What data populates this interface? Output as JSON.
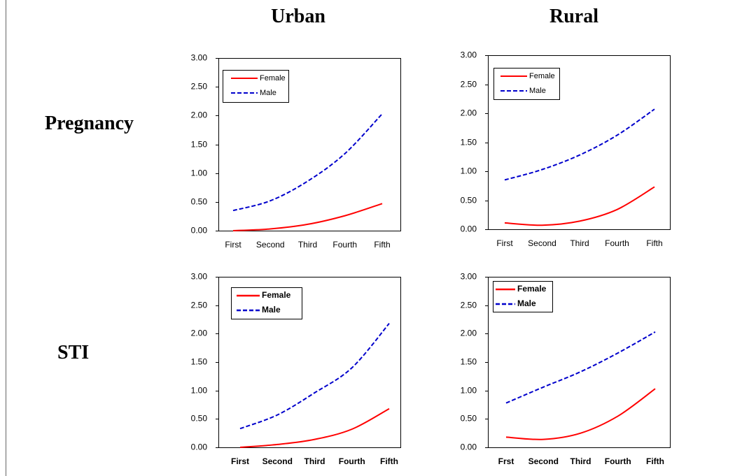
{
  "column_headers": [
    "Urban",
    "Rural"
  ],
  "row_headers": [
    "Pregnancy",
    "STI"
  ],
  "chart_data": [
    {
      "type": "line",
      "categories": [
        "First",
        "Second",
        "Third",
        "Fourth",
        "Fifth"
      ],
      "series": [
        {
          "name": "Female",
          "color": "#ff0000",
          "values": [
            0.0,
            0.03,
            0.11,
            0.26,
            0.47
          ]
        },
        {
          "name": "Male",
          "color": "#0000cc",
          "values": [
            0.35,
            0.52,
            0.86,
            1.34,
            2.03
          ]
        }
      ],
      "ylim": [
        0,
        3
      ],
      "yticks": [
        0,
        0.5,
        1,
        1.5,
        2,
        2.5,
        3
      ],
      "ytick_labels": [
        "0.00",
        "0.50",
        "1.00",
        "1.50",
        "2.00",
        "2.50",
        "3.00"
      ],
      "grid": false,
      "legend": "top-left"
    },
    {
      "type": "line",
      "categories": [
        "First",
        "Second",
        "Third",
        "Fourth",
        "Fifth"
      ],
      "series": [
        {
          "name": "Female",
          "color": "#ff0000",
          "values": [
            0.11,
            0.07,
            0.14,
            0.34,
            0.73
          ]
        },
        {
          "name": "Male",
          "color": "#0000cc",
          "values": [
            0.85,
            1.03,
            1.28,
            1.62,
            2.07
          ]
        }
      ],
      "ylim": [
        0,
        3
      ],
      "yticks": [
        0,
        0.5,
        1,
        1.5,
        2,
        2.5,
        3
      ],
      "ytick_labels": [
        "0.00",
        "0.50",
        "1.00",
        "1.50",
        "2.00",
        "2.50",
        "3.00"
      ],
      "grid": false,
      "legend": "top-left"
    },
    {
      "type": "line",
      "categories": [
        "First",
        "Second",
        "Third",
        "Fourth",
        "Fifth"
      ],
      "series": [
        {
          "name": "Female",
          "color": "#ff0000",
          "values": [
            0.0,
            0.05,
            0.14,
            0.32,
            0.68
          ]
        },
        {
          "name": "Male",
          "color": "#0000cc",
          "values": [
            0.33,
            0.57,
            0.96,
            1.4,
            2.18
          ]
        }
      ],
      "ylim": [
        0,
        3
      ],
      "yticks": [
        0,
        0.5,
        1,
        1.5,
        2,
        2.5,
        3
      ],
      "ytick_labels": [
        "0.00",
        "0.50",
        "1.00",
        "1.50",
        "2.00",
        "2.50",
        "3.00"
      ],
      "grid": false,
      "legend": "top-left"
    },
    {
      "type": "line",
      "categories": [
        "Frst",
        "Second",
        "Third",
        "Fourth",
        "Fifth"
      ],
      "series": [
        {
          "name": "Female",
          "color": "#ff0000",
          "values": [
            0.18,
            0.14,
            0.25,
            0.55,
            1.03
          ]
        },
        {
          "name": "Male",
          "color": "#0000cc",
          "values": [
            0.78,
            1.06,
            1.33,
            1.66,
            2.03
          ]
        }
      ],
      "ylim": [
        0,
        3
      ],
      "yticks": [
        0,
        0.5,
        1,
        1.5,
        2,
        2.5,
        3
      ],
      "ytick_labels": [
        "0.00",
        "0.50",
        "1.00",
        "1.50",
        "2.00",
        "2.50",
        "3.00"
      ],
      "grid": false,
      "legend": "top-left"
    }
  ]
}
